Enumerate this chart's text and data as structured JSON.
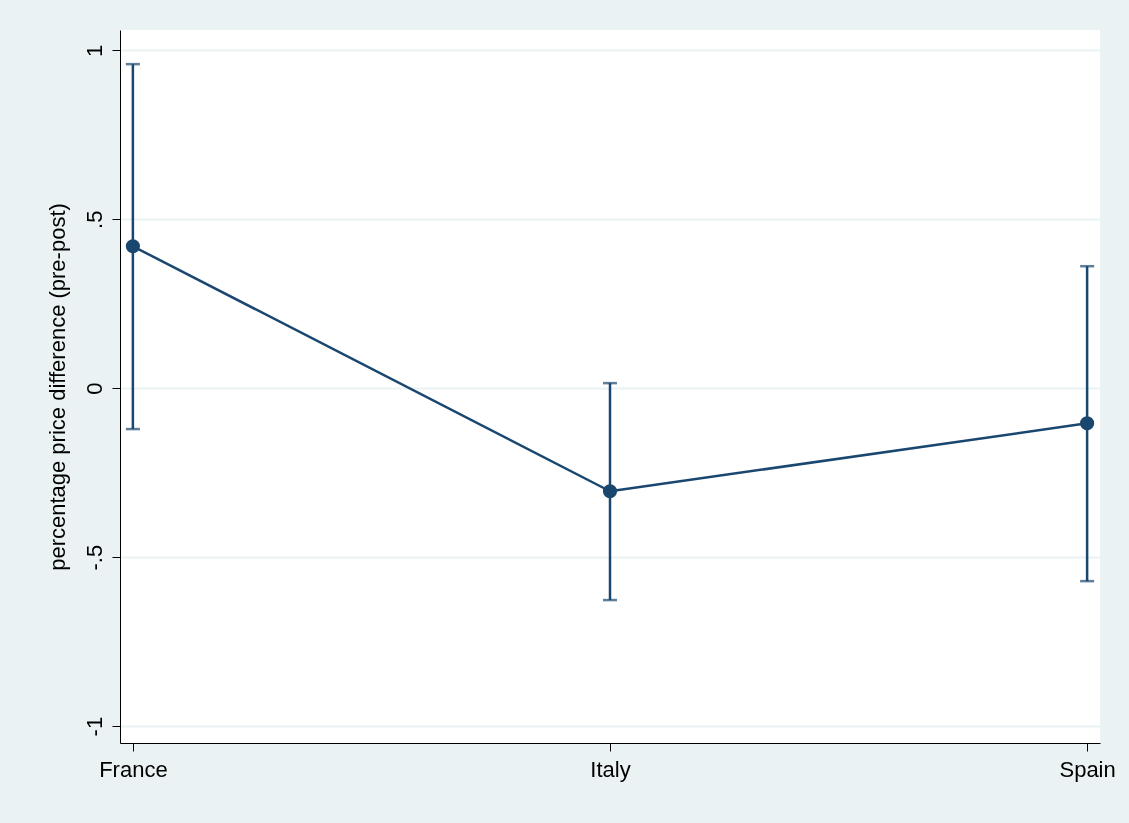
{
  "chart_data": {
    "type": "line",
    "ylabel": "percentage price difference (pre-post)",
    "categories": [
      "France",
      "Italy",
      "Spain"
    ],
    "values": [
      0.42,
      -0.305,
      -0.104
    ],
    "errors": [
      [
        -0.121,
        0.959
      ],
      [
        -0.627,
        0.015
      ],
      [
        -0.571,
        0.361
      ]
    ],
    "color": "#1a476f",
    "marker": "circle",
    "grid": "y",
    "ylim": [
      -1.05,
      1.06
    ],
    "yticks": [
      {
        "value": -1,
        "label": "-1"
      },
      {
        "value": -0.5,
        "label": "-.5"
      },
      0,
      {
        "value": 0.5,
        "label": ".5"
      },
      1
    ]
  }
}
